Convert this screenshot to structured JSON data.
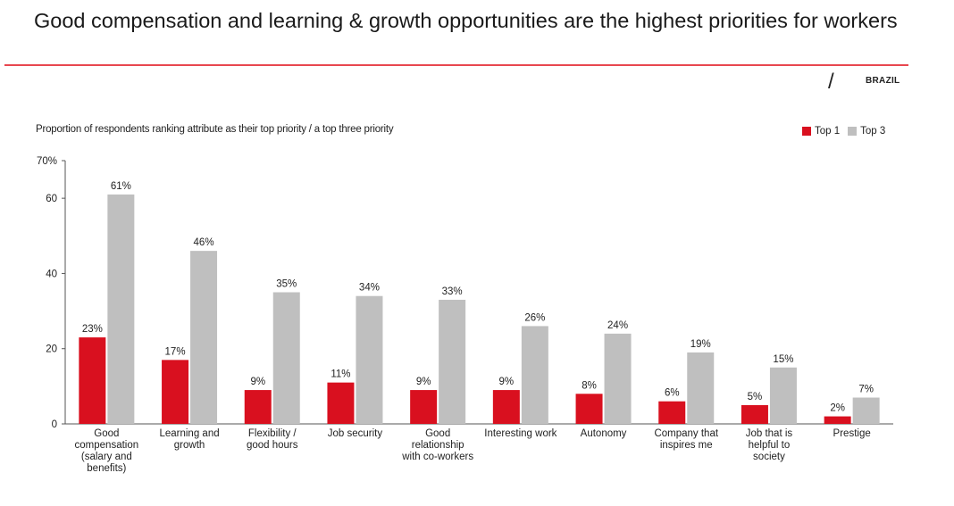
{
  "header": {
    "title": "Good compensation and learning & growth opportunities are the highest priorities for workers",
    "slash": "/",
    "region": "BRAZIL"
  },
  "colors": {
    "accent_rule": "#e8474f",
    "top1": "#d9101f",
    "top3": "#bfbfbf",
    "axis": "#555555"
  },
  "chart_data": {
    "type": "bar",
    "title": "Good compensation and learning & growth opportunities are the highest priorities for workers",
    "subtitle": "Proportion of respondents ranking attribute as their top priority / a top three priority",
    "ylim": [
      0,
      70
    ],
    "yticks": [
      0,
      20,
      40,
      60,
      70
    ],
    "ytick_labels": [
      "0",
      "20",
      "40",
      "60",
      "70%"
    ],
    "grid": false,
    "legend_position": "top-right",
    "categories": [
      [
        "Good",
        "compensation",
        "(salary and",
        "benefits)"
      ],
      [
        "Learning and",
        "growth"
      ],
      [
        "Flexibility /",
        "good hours"
      ],
      [
        "Job security"
      ],
      [
        "Good",
        "relationship",
        "with co-workers"
      ],
      [
        "Interesting work"
      ],
      [
        "Autonomy"
      ],
      [
        "Company that",
        "inspires me"
      ],
      [
        "Job that is",
        "helpful to",
        "society"
      ],
      [
        "Prestige"
      ]
    ],
    "series": [
      {
        "name": "Top 1",
        "values": [
          23,
          17,
          9,
          11,
          9,
          9,
          8,
          6,
          5,
          2
        ],
        "labels": [
          "23%",
          "17%",
          "9%",
          "11%",
          "9%",
          "9%",
          "8%",
          "6%",
          "5%",
          "2%"
        ]
      },
      {
        "name": "Top 3",
        "values": [
          61,
          46,
          35,
          34,
          33,
          26,
          24,
          19,
          15,
          7
        ],
        "labels": [
          "61%",
          "46%",
          "35%",
          "34%",
          "33%",
          "26%",
          "24%",
          "19%",
          "15%",
          "7%"
        ]
      }
    ]
  }
}
